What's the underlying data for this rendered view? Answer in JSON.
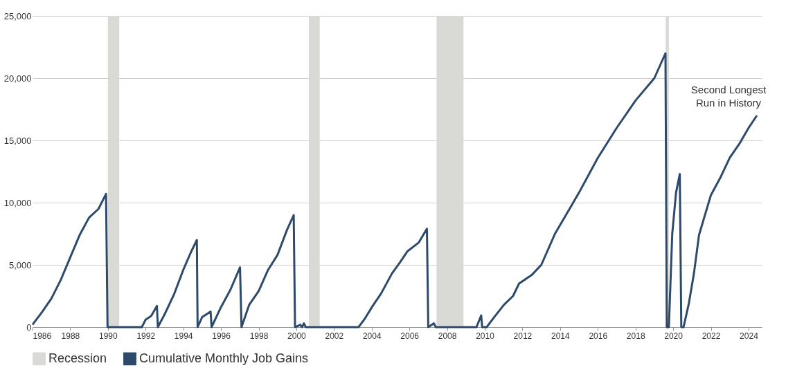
{
  "chart_data": {
    "type": "line",
    "legend": "bottom",
    "grid": "y",
    "marker": "none",
    "line_style": "solid",
    "xlim": [
      1986,
      2024.7
    ],
    "xticks": [
      1986,
      1988,
      1990,
      1992,
      1994,
      1996,
      1998,
      2000,
      2002,
      2004,
      2006,
      2008,
      2010,
      2012,
      2014,
      2016,
      2018,
      2020,
      2022,
      2024
    ],
    "ylim": [
      0,
      25000
    ],
    "yticks": [
      0,
      {
        "value": 5000,
        "label": "5,000"
      },
      {
        "value": 10000,
        "label": "10,000"
      },
      {
        "value": 15000,
        "label": "15,000"
      },
      {
        "value": 20000,
        "label": "20,000"
      },
      {
        "value": 25000,
        "label": "25,000"
      }
    ],
    "bands": [
      {
        "axis": "x",
        "from": 1990.0,
        "to": 1990.6,
        "label": "Recession",
        "color": "#d9d9d6"
      },
      {
        "axis": "x",
        "from": 2000.66,
        "to": 2001.24,
        "color": "#d9d9d6"
      },
      {
        "axis": "x",
        "from": 2007.44,
        "to": 2008.87,
        "color": "#d9d9d6"
      },
      {
        "axis": "x",
        "from": 2019.6,
        "to": 2019.77,
        "color": "#d9d9d6"
      }
    ],
    "annotations": [
      "Second Longest\nRun in History"
    ],
    "series": [
      {
        "name": "Cumulative Monthly Job Gains",
        "color": "#2e4a6b",
        "x": [
          1986.0,
          1986.5,
          1987.0,
          1987.5,
          1988.0,
          1988.5,
          1989.0,
          1989.5,
          1989.9,
          1989.98,
          1990.0,
          1991.0,
          1991.8,
          1992.0,
          1992.3,
          1992.6,
          1992.65,
          1993.0,
          1993.5,
          1994.0,
          1994.4,
          1994.72,
          1994.76,
          1995.0,
          1995.45,
          1995.5,
          1996.0,
          1996.5,
          1997.01,
          1997.09,
          1997.5,
          1998.0,
          1998.5,
          1999.0,
          1999.5,
          1999.86,
          1999.93,
          2000.1,
          2000.2,
          2000.3,
          2000.4,
          2000.5,
          2003.3,
          2003.6,
          2004.05,
          2004.5,
          2005.07,
          2005.5,
          2005.9,
          2006.5,
          2006.93,
          2007.0,
          2007.3,
          2007.4,
          2009.56,
          2009.81,
          2009.86,
          2010.1,
          2010.5,
          2011.02,
          2011.5,
          2011.82,
          2012.5,
          2013.0,
          2013.72,
          2014.5,
          2015.0,
          2016.0,
          2017.0,
          2018.0,
          2019.0,
          2019.59,
          2019.66,
          2019.77,
          2019.95,
          2020.15,
          2020.35,
          2020.43,
          2020.55,
          2020.83,
          2021.1,
          2021.37,
          2022.0,
          2022.5,
          2023.0,
          2023.5,
          2024.0,
          2024.44
        ],
        "values": [
          200,
          1200,
          2300,
          3800,
          5600,
          7400,
          8800,
          9500,
          10700,
          0,
          0,
          0,
          0,
          600,
          900,
          1700,
          0,
          1000,
          2600,
          4600,
          6000,
          7000,
          0,
          800,
          1250,
          0,
          1600,
          3000,
          4800,
          0,
          1800,
          2900,
          4600,
          5800,
          7800,
          9000,
          0,
          100,
          200,
          0,
          300,
          0,
          0,
          600,
          1700,
          2700,
          4300,
          5200,
          6100,
          6800,
          7900,
          0,
          300,
          0,
          0,
          940,
          0,
          0,
          800,
          1800,
          2500,
          3500,
          4200,
          5000,
          7480,
          9500,
          10800,
          13600,
          16000,
          18200,
          20000,
          22000,
          0,
          0,
          7500,
          10800,
          12300,
          0,
          0,
          1900,
          4300,
          7400,
          10600,
          12000,
          13600,
          14700,
          16000,
          17000
        ]
      }
    ]
  }
}
